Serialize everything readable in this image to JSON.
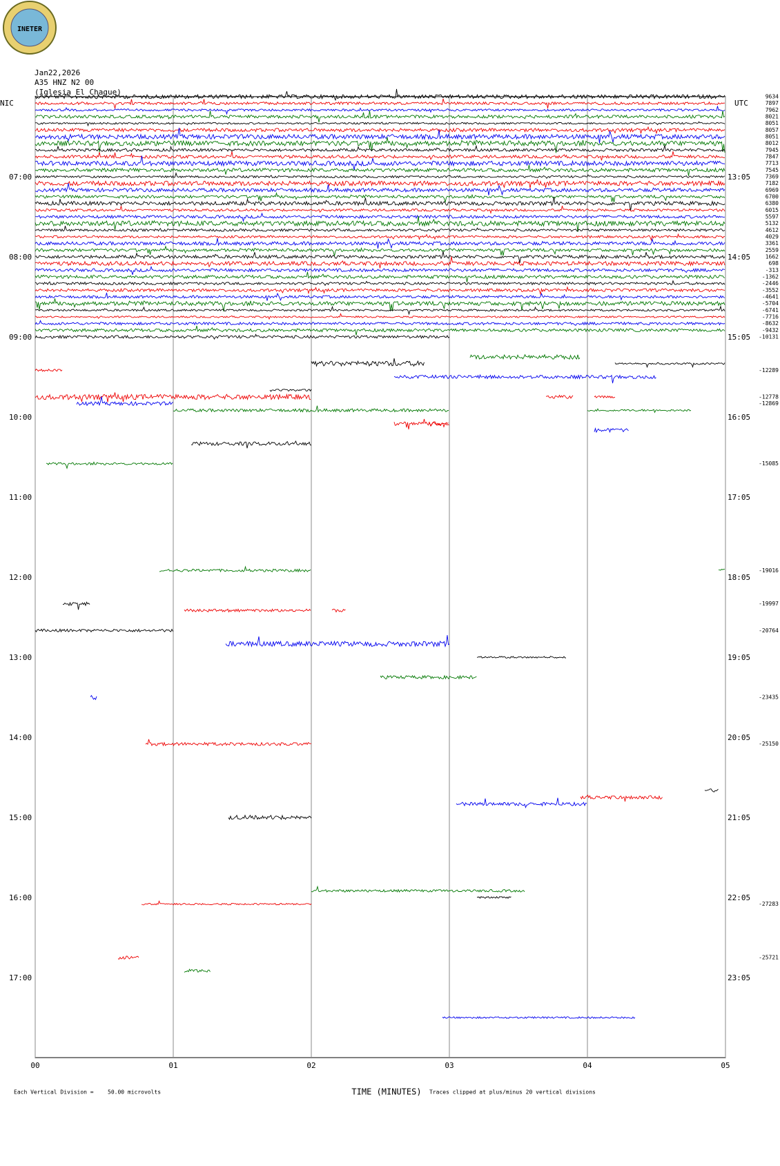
{
  "logo": "INETER",
  "header": [
    "Jan22,2026",
    "A35 HNZ N2 00",
    "(Iglesia El Chague)"
  ],
  "chart_data": {
    "type": "helicorder",
    "left_axis_label": "NIC",
    "right_axis_label": "UTC",
    "x_label": "TIME (MINUTES)",
    "ylim": [
      6,
      18
    ],
    "row_minutes": 5,
    "xlim": [
      0,
      5
    ],
    "xticks": [
      {
        "value": 0,
        "label": "00"
      },
      {
        "value": 1,
        "label": "01"
      },
      {
        "value": 2,
        "label": "02"
      },
      {
        "value": 3,
        "label": "03"
      },
      {
        "value": 4,
        "label": "04"
      },
      {
        "value": 5,
        "label": "05"
      }
    ],
    "yticks": [
      {
        "value": 7,
        "label": "07:00"
      },
      {
        "value": 8,
        "label": "08:00"
      },
      {
        "value": 9,
        "label": "09:00"
      },
      {
        "value": 10,
        "label": "10:00"
      },
      {
        "value": 11,
        "label": "11:00"
      },
      {
        "value": 12,
        "label": "12:00"
      },
      {
        "value": 13,
        "label": "13:00"
      },
      {
        "value": 14,
        "label": "14:00"
      },
      {
        "value": 15,
        "label": "15:00"
      },
      {
        "value": 16,
        "label": "16:00"
      },
      {
        "value": 17,
        "label": "17:00"
      }
    ],
    "y2ticks": [
      {
        "value": 7,
        "label": "13:05"
      },
      {
        "value": 8,
        "label": "14:05"
      },
      {
        "value": 9,
        "label": "15:05"
      },
      {
        "value": 10,
        "label": "16:05"
      },
      {
        "value": 11,
        "label": "17:05"
      },
      {
        "value": 12,
        "label": "18:05"
      },
      {
        "value": 13,
        "label": "19:05"
      },
      {
        "value": 14,
        "label": "20:05"
      },
      {
        "value": 15,
        "label": "21:05"
      },
      {
        "value": 16,
        "label": "22:05"
      },
      {
        "value": 17,
        "label": "23:05"
      }
    ],
    "colors": [
      "#000000",
      "#ee0000",
      "#0000ee",
      "#007700"
    ],
    "offsets": [
      {
        "row": 0,
        "value": 9634
      },
      {
        "row": 1,
        "value": 7897
      },
      {
        "row": 2,
        "value": 7962
      },
      {
        "row": 3,
        "value": 8021
      },
      {
        "row": 4,
        "value": 8051
      },
      {
        "row": 5,
        "value": 8057
      },
      {
        "row": 6,
        "value": 8051
      },
      {
        "row": 7,
        "value": 8012
      },
      {
        "row": 8,
        "value": 7945
      },
      {
        "row": 9,
        "value": 7847
      },
      {
        "row": 10,
        "value": 7713
      },
      {
        "row": 11,
        "value": 7545
      },
      {
        "row": 12,
        "value": 7369
      },
      {
        "row": 13,
        "value": 7182
      },
      {
        "row": 14,
        "value": 6969
      },
      {
        "row": 15,
        "value": 6700
      },
      {
        "row": 16,
        "value": 6380
      },
      {
        "row": 17,
        "value": 6015
      },
      {
        "row": 18,
        "value": 5597
      },
      {
        "row": 19,
        "value": 5132
      },
      {
        "row": 20,
        "value": 4612
      },
      {
        "row": 21,
        "value": 4029
      },
      {
        "row": 22,
        "value": 3361
      },
      {
        "row": 23,
        "value": 2559
      },
      {
        "row": 24,
        "value": 1662
      },
      {
        "row": 25,
        "value": 698
      },
      {
        "row": 26,
        "value": -313
      },
      {
        "row": 27,
        "value": -1362
      },
      {
        "row": 28,
        "value": -2446
      },
      {
        "row": 29,
        "value": -3552
      },
      {
        "row": 30,
        "value": -4641
      },
      {
        "row": 31,
        "value": -5704
      },
      {
        "row": 32,
        "value": -6741
      },
      {
        "row": 33,
        "value": -7716
      },
      {
        "row": 34,
        "value": -8632
      },
      {
        "row": 35,
        "value": -9432
      },
      {
        "row": 36,
        "value": -10131
      },
      {
        "row": 41,
        "value": -12289
      },
      {
        "row": 45,
        "value": -12778
      },
      {
        "row": 46,
        "value": -12869
      },
      {
        "row": 55,
        "value": -15085
      },
      {
        "row": 71,
        "value": -19016
      },
      {
        "row": 76,
        "value": -19997
      },
      {
        "row": 80,
        "value": -20764
      },
      {
        "row": 90,
        "value": -23435
      },
      {
        "row": 97,
        "value": -25150
      },
      {
        "row": 121,
        "value": -27283
      },
      {
        "row": 129,
        "value": -25721
      }
    ],
    "segments": [
      [
        0,
        0,
        5
      ],
      [
        1,
        0,
        5
      ],
      [
        2,
        0,
        5
      ],
      [
        3,
        0,
        5
      ],
      [
        4,
        0,
        5
      ],
      [
        5,
        0,
        5
      ],
      [
        6,
        0,
        5
      ],
      [
        7,
        0,
        5
      ],
      [
        8,
        0,
        5
      ],
      [
        9,
        0,
        5
      ],
      [
        10,
        0,
        5
      ],
      [
        11,
        0,
        5
      ],
      [
        12,
        0,
        5
      ],
      [
        13,
        0,
        5
      ],
      [
        14,
        0,
        5
      ],
      [
        15,
        0,
        5
      ],
      [
        16,
        0,
        5
      ],
      [
        17,
        0,
        5
      ],
      [
        18,
        0,
        5
      ],
      [
        19,
        0,
        5
      ],
      [
        20,
        0,
        5
      ],
      [
        21,
        0,
        5
      ],
      [
        22,
        0,
        5
      ],
      [
        23,
        0,
        5
      ],
      [
        24,
        0,
        5
      ],
      [
        25,
        0,
        5
      ],
      [
        26,
        0,
        5
      ],
      [
        27,
        0,
        5
      ],
      [
        28,
        0,
        5
      ],
      [
        29,
        0,
        5
      ],
      [
        30,
        0,
        5
      ],
      [
        31,
        0,
        5
      ],
      [
        32,
        0,
        5
      ],
      [
        33,
        0,
        5
      ],
      [
        34,
        0,
        5
      ],
      [
        35,
        0,
        5
      ],
      [
        36,
        0,
        3
      ],
      [
        41,
        0,
        0.2
      ],
      [
        40,
        2,
        2.82
      ],
      [
        39,
        3.15,
        3.95
      ],
      [
        40,
        4.2,
        5
      ],
      [
        45,
        0,
        2
      ],
      [
        46,
        0.3,
        1
      ],
      [
        44,
        1.7,
        2
      ],
      [
        47,
        1,
        3
      ],
      [
        42,
        2.6,
        4.5
      ],
      [
        45,
        3.7,
        3.9
      ],
      [
        45,
        4.05,
        4.2
      ],
      [
        47,
        4,
        4.75
      ],
      [
        50,
        4.05,
        4.3
      ],
      [
        49,
        2.85,
        3
      ],
      [
        49,
        2.6,
        3
      ],
      [
        52,
        1.13,
        2
      ],
      [
        55,
        0.08,
        1
      ],
      [
        71,
        0.9,
        2
      ],
      [
        71,
        4.95,
        5
      ],
      [
        77,
        2.15,
        2.25
      ],
      [
        76,
        0.2,
        0.4
      ],
      [
        80,
        0,
        1
      ],
      [
        77,
        1.08,
        2
      ],
      [
        82,
        1.38,
        3
      ],
      [
        84,
        3.2,
        3.85
      ],
      [
        87,
        2.5,
        3.2
      ],
      [
        90,
        0.4,
        0.45
      ],
      [
        97,
        0.8,
        2
      ],
      [
        108,
        1.4,
        2
      ],
      [
        106,
        3.05,
        4
      ],
      [
        105,
        3.95,
        4.55
      ],
      [
        104,
        4.85,
        4.95
      ],
      [
        121,
        0.77,
        2
      ],
      [
        119,
        2,
        3.55
      ],
      [
        120,
        3.2,
        3.45
      ],
      [
        129,
        0.6,
        0.75
      ],
      [
        131,
        1.08,
        1.27
      ],
      [
        138,
        2.95,
        4.35
      ]
    ],
    "footer": [
      "Each Vertical Division =",
      "50.00 microvolts",
      "Traces clipped at plus/minus 20 vertical divisions"
    ]
  }
}
